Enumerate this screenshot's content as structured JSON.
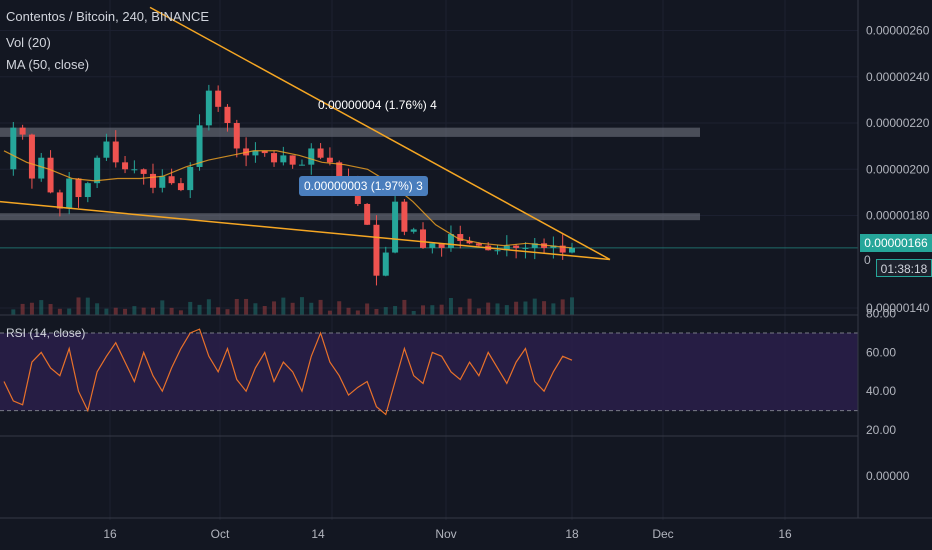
{
  "header": {
    "title": "Contentos / Bitcoin, 240, BINANCE",
    "vol_label": "Vol (20)",
    "ma_label": "MA (50, close)",
    "rsi_label": "RSI (14, close)"
  },
  "annotations": {
    "upper_measure": "0.00000004 (1.76%) 4",
    "lower_measure": "0.00000003 (1.97%) 3"
  },
  "price_axis": {
    "ticks": [
      "0.00000260",
      "0.00000240",
      "0.00000220",
      "0.00000200",
      "0.00000180",
      "0.00000140"
    ],
    "current_price": "0.00000166",
    "countdown": "01:38:18",
    "partial_label": "0"
  },
  "rsi_axis": {
    "ticks": [
      "80.00",
      "60.00",
      "40.00",
      "20.00"
    ]
  },
  "third_axis": {
    "ticks": [
      "0.00000"
    ]
  },
  "time_axis": {
    "ticks": [
      "16",
      "Oct",
      "14",
      "Nov",
      "18",
      "Dec",
      "16"
    ]
  },
  "colors": {
    "background": "#131722",
    "up": "#26a69a",
    "down": "#ef5350",
    "ma": "#f5a623",
    "trendline": "#f5a623",
    "rsi_line": "#e8712a",
    "rsi_band": "#2a1f4a",
    "zone": "#787b86",
    "price_tag": "#26a69a",
    "measure_box": "#4a7ebd"
  },
  "chart_data": [
    {
      "type": "candlestick",
      "title": "Contentos / Bitcoin, 240, BINANCE",
      "x_ticks": [
        "16",
        "Oct",
        "14",
        "Nov",
        "18",
        "Dec",
        "16"
      ],
      "y_ticks": [
        2.6e-06,
        2.4e-06,
        2.2e-06,
        2e-06,
        1.8e-06,
        1.4e-06
      ],
      "ylim": [
        1.37e-06,
        2.68e-06
      ],
      "last_price": 1.66e-06,
      "close_series": [
        2e-06,
        2.18e-06,
        2.15e-06,
        1.96e-06,
        2.05e-06,
        1.9e-06,
        1.83e-06,
        1.96e-06,
        1.88e-06,
        1.94e-06,
        2.05e-06,
        2.12e-06,
        2.03e-06,
        2e-06,
        2e-06,
        1.98e-06,
        1.92e-06,
        1.97e-06,
        1.94e-06,
        1.91e-06,
        2.01e-06,
        2.19e-06,
        2.34e-06,
        2.27e-06,
        2.2e-06,
        2.09e-06,
        2.06e-06,
        2.08e-06,
        2.07e-06,
        2.03e-06,
        2.06e-06,
        2.02e-06,
        2.02e-06,
        2.09e-06,
        2.05e-06,
        2.03e-06,
        1.97e-06,
        1.93e-06,
        1.85e-06,
        1.76e-06,
        1.54e-06,
        1.64e-06,
        1.86e-06,
        1.73e-06,
        1.74e-06,
        1.66e-06,
        1.68e-06,
        1.66e-06,
        1.72e-06,
        1.69e-06,
        1.68e-06,
        1.67e-06,
        1.65e-06,
        1.65e-06,
        1.67e-06,
        1.66e-06,
        1.66e-06,
        1.68e-06,
        1.66e-06,
        1.67e-06,
        1.64e-06,
        1.66e-06
      ],
      "moving_average": [
        2.08e-06,
        2.03e-06,
        2e-06,
        1.96e-06,
        1.95e-06,
        1.96e-06,
        1.96e-06,
        1.97e-06,
        2.01e-06,
        2.04e-06,
        2.06e-06,
        2.08e-06,
        2.08e-06,
        2.06e-06,
        2.03e-06,
        2.02e-06,
        2e-06,
        1.94e-06,
        1.86e-06,
        1.76e-06,
        1.7e-06,
        1.68e-06,
        1.67e-06,
        1.68e-06,
        1.67e-06,
        1.66e-06
      ],
      "horizontal_zones": [
        {
          "top": 2.18e-06,
          "bottom": 2.14e-06
        },
        {
          "top": 1.81e-06,
          "bottom": 1.78e-06
        }
      ],
      "trendlines": [
        {
          "from_price": 2.7e-06,
          "to_price": 1.61e-06
        },
        {
          "from_price": 1.86e-06,
          "to_price": 1.61e-06
        }
      ],
      "volume_label": "Vol (20)",
      "ma_label": "MA (50, close)"
    },
    {
      "type": "line",
      "title": "RSI (14, close)",
      "y_ticks": [
        80,
        60,
        40,
        20
      ],
      "ylim": [
        20,
        80
      ],
      "bands": [
        30,
        70
      ],
      "series": [
        {
          "name": "RSI (14, close)",
          "values": [
            45,
            35,
            33,
            55,
            60,
            52,
            48,
            62,
            40,
            30,
            50,
            58,
            65,
            55,
            45,
            60,
            48,
            40,
            52,
            62,
            70,
            72,
            58,
            50,
            62,
            46,
            40,
            52,
            60,
            45,
            55,
            50,
            40,
            58,
            70,
            55,
            48,
            38,
            42,
            45,
            32,
            28,
            45,
            62,
            48,
            44,
            60,
            58,
            50,
            46,
            55,
            48,
            60,
            52,
            44,
            55,
            62,
            45,
            40,
            50,
            58,
            56
          ]
        }
      ]
    }
  ]
}
